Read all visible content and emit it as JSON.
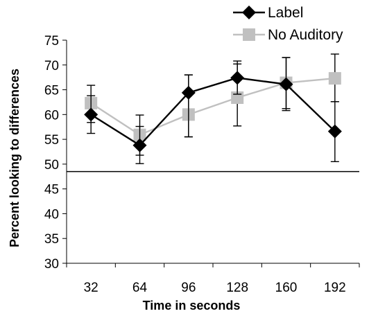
{
  "chart_data": {
    "type": "line",
    "title": "",
    "xlabel": "Time in seconds",
    "ylabel": "Percent looking to differences",
    "categories": [
      "32",
      "64",
      "96",
      "128",
      "160",
      "192"
    ],
    "ylim": [
      30,
      75
    ],
    "yticks": [
      "75",
      "70",
      "65",
      "60",
      "55",
      "50",
      "45",
      "40",
      "35",
      "30"
    ],
    "reference_line": 48.5,
    "grid": false,
    "legend_position": "top-right",
    "series": [
      {
        "name": "Label",
        "color": "#000000",
        "marker": "diamond",
        "values": [
          60,
          53.8,
          64.4,
          67.4,
          66.1,
          56.6
        ],
        "error_low": [
          56.2,
          50.1,
          55.5,
          64.1,
          60.8,
          50.5
        ],
        "error_high": [
          63.8,
          57.6,
          68.0,
          70.8,
          71.5,
          62.6
        ]
      },
      {
        "name": "No Auditory",
        "color": "#c0c0c0",
        "marker": "square",
        "values": [
          62.3,
          55.9,
          60.0,
          63.4,
          66.4,
          67.3
        ],
        "error_low": [
          58.4,
          51.8,
          55.5,
          57.7,
          61.2,
          62.6
        ],
        "error_high": [
          65.9,
          59.9,
          68.0,
          70.2,
          71.5,
          72.2
        ]
      }
    ]
  }
}
